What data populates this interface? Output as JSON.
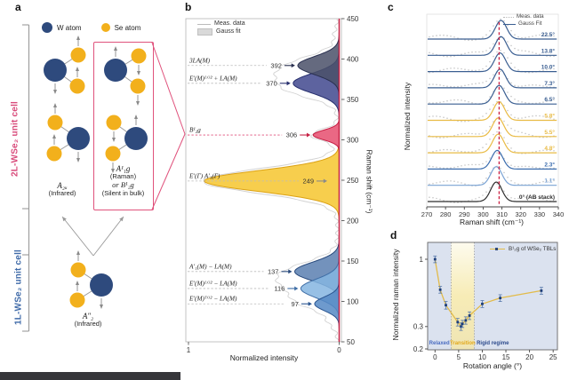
{
  "colors": {
    "navy": "#2e4a7d",
    "gold": "#f2b01c",
    "gold2": "#e2bb4a",
    "pink": "#e0527c",
    "red_line": "#c62245",
    "two_l_label": "#d84a7a",
    "one_l_label": "#3f6aa8",
    "blue_curve": "#3a5e91",
    "panel_d_bg": "#dbe2ef"
  },
  "panels": {
    "a": {
      "letter": "a",
      "legend": [
        {
          "label": "W atom"
        },
        {
          "label": "Se atom"
        }
      ],
      "unit_cell_2l": "2L-WSe₂ unit cell",
      "unit_cell_1l": "1L-WSe₂ unit cell",
      "mode_a2u": {
        "line1": "A₂ᵤ",
        "line2": "(Infrared)"
      },
      "mode_box": {
        "line1": "A¹₁g",
        "line2": "(Raman)",
        "line3": "or B¹₂g",
        "line4": "(Silent in bulk)"
      },
      "mode_a2pp": {
        "line1": "A″₂",
        "line2": "(Infrared)"
      }
    },
    "b": {
      "letter": "b",
      "legend": {
        "meas": "Meas. data",
        "fit": "Gauss fit"
      },
      "xlabel": "Normalized intensity",
      "ylabel": "Raman shift (cm⁻¹)"
    },
    "c": {
      "letter": "c",
      "legend": {
        "meas": "Meas. data",
        "fit": "Gauss Fit"
      },
      "xlabel": "Raman shift (cm⁻¹)",
      "ylabel": "Normalized intensity"
    },
    "d": {
      "letter": "d",
      "legend": "B¹₂g of WSe₂ TBLs",
      "xlabel": "Rotation angle (°)",
      "ylabel": "Normalized raman intensity"
    }
  },
  "chart_data": [
    {
      "panel": "b",
      "type": "area",
      "orientation": "vertical spectrum, intensity 1 (left) to 0 (right)",
      "xlabel": "Normalized intensity",
      "ylabel": "Raman shift (cm⁻¹)",
      "intensity_ticks": [
        "1",
        "0"
      ],
      "shift_ticks": [
        450,
        400,
        350,
        300,
        250,
        200,
        150,
        100,
        50
      ],
      "shift_range": [
        50,
        450
      ],
      "legend": [
        "Meas. data",
        "Gauss fit"
      ],
      "peaks": [
        {
          "label": "3LA(M)",
          "num": "392",
          "shift": 392,
          "amp": 0.27,
          "fwhm": 26,
          "fill": "#4a5068",
          "stroke": "#2a3050"
        },
        {
          "label": "E′(M)ᴸᴼ² + LA(M)",
          "num": "370",
          "shift": 370,
          "amp": 0.3,
          "fwhm": 28,
          "fill": "#41488e",
          "stroke": "#272f6e"
        },
        {
          "label": "B¹₂g",
          "num": "306",
          "shift": 306,
          "amp": 0.17,
          "fwhm": 14,
          "fill": "#e64d6e",
          "stroke": "#c61f44",
          "accent": true
        },
        {
          "label": "E′(Γ) A′₁(Γ)",
          "num": "249",
          "shift": 249,
          "amp": 0.88,
          "fwhm": 30,
          "fill": "#f6c62e",
          "stroke": "#dca214"
        },
        {
          "label": "A′₁(M) − LA(M)",
          "num": "137",
          "shift": 137,
          "amp": 0.29,
          "fwhm": 27,
          "fill": "#5a7fb0",
          "stroke": "#28497c"
        },
        {
          "label": "E′(M)ᴸᴼ² − LA(M)",
          "num": "116",
          "shift": 116,
          "amp": 0.25,
          "fwhm": 27,
          "fill": "#85b5e0",
          "stroke": "#3f6ea6"
        },
        {
          "label": "E′(M)ᵀᴼ² − LA(M)",
          "num": "97",
          "shift": 97,
          "amp": 0.16,
          "fwhm": 20,
          "fill": "#5588c4",
          "stroke": "#2a5590"
        }
      ]
    },
    {
      "panel": "c",
      "type": "line",
      "xlabel": "Raman shift (cm⁻¹)",
      "ylabel": "Normalized intensity",
      "x_range": [
        270,
        340
      ],
      "x_ticks": [
        270,
        280,
        290,
        300,
        310,
        320,
        330,
        340
      ],
      "legend": [
        "Meas. data",
        "Gauss Fit"
      ],
      "dashed_line_x": 308.5,
      "series": [
        {
          "label": "22.5°",
          "center": 309.5,
          "color": "#3a5e91"
        },
        {
          "label": "13.8°",
          "center": 309.5,
          "color": "#3a5e91"
        },
        {
          "label": "10.0°",
          "center": 309.0,
          "color": "#3a5e91"
        },
        {
          "label": "7.3°",
          "center": 309.0,
          "color": "#3a5e91"
        },
        {
          "label": "6.5°",
          "center": 308.5,
          "color": "#3a5e91"
        },
        {
          "label": "5.8°",
          "center": 308.5,
          "color": "#e9bb45"
        },
        {
          "label": "5.5°",
          "center": 308.0,
          "color": "#e9bb45"
        },
        {
          "label": "4.8°",
          "center": 308.0,
          "color": "#e9bb45"
        },
        {
          "label": "2.3°",
          "center": 307.5,
          "color": "#3a6cae"
        },
        {
          "label": "1.1°",
          "center": 307.0,
          "color": "#7aa3d4"
        },
        {
          "label": "0° (AB stack)",
          "center": 307.0,
          "color": "#2f2f2f"
        }
      ]
    },
    {
      "panel": "d",
      "type": "scatter",
      "xlabel": "Rotation angle (°)",
      "ylabel": "Normalized raman intensity",
      "y_scale": "log",
      "x_ticks": [
        0,
        5,
        10,
        15,
        20,
        25
      ],
      "y_ticks": [
        1,
        0.3,
        0.2
      ],
      "legend": "B¹₂g of WSe₂ TBLs",
      "regions": [
        {
          "label": "Relaxed",
          "from": -1.5,
          "to": 3.4,
          "color": "#4a6cc0"
        },
        {
          "label": "Transition",
          "from": 3.4,
          "to": 8.3,
          "color": "#e2a81c"
        },
        {
          "label": "Rigid regime",
          "from": 8.3,
          "to": 26,
          "color": "#2c4a8c"
        }
      ],
      "points": [
        {
          "x": 0,
          "y": 1.0,
          "err": 0.06
        },
        {
          "x": 1.1,
          "y": 0.58,
          "err": 0.035
        },
        {
          "x": 2.3,
          "y": 0.44,
          "err": 0.03
        },
        {
          "x": 4.8,
          "y": 0.325,
          "err": 0.022
        },
        {
          "x": 5.5,
          "y": 0.3,
          "err": 0.02
        },
        {
          "x": 5.8,
          "y": 0.315,
          "err": 0.02
        },
        {
          "x": 6.5,
          "y": 0.335,
          "err": 0.022
        },
        {
          "x": 7.3,
          "y": 0.365,
          "err": 0.025
        },
        {
          "x": 10,
          "y": 0.45,
          "err": 0.028
        },
        {
          "x": 13.8,
          "y": 0.5,
          "err": 0.03
        },
        {
          "x": 22.5,
          "y": 0.57,
          "err": 0.035
        }
      ]
    }
  ]
}
